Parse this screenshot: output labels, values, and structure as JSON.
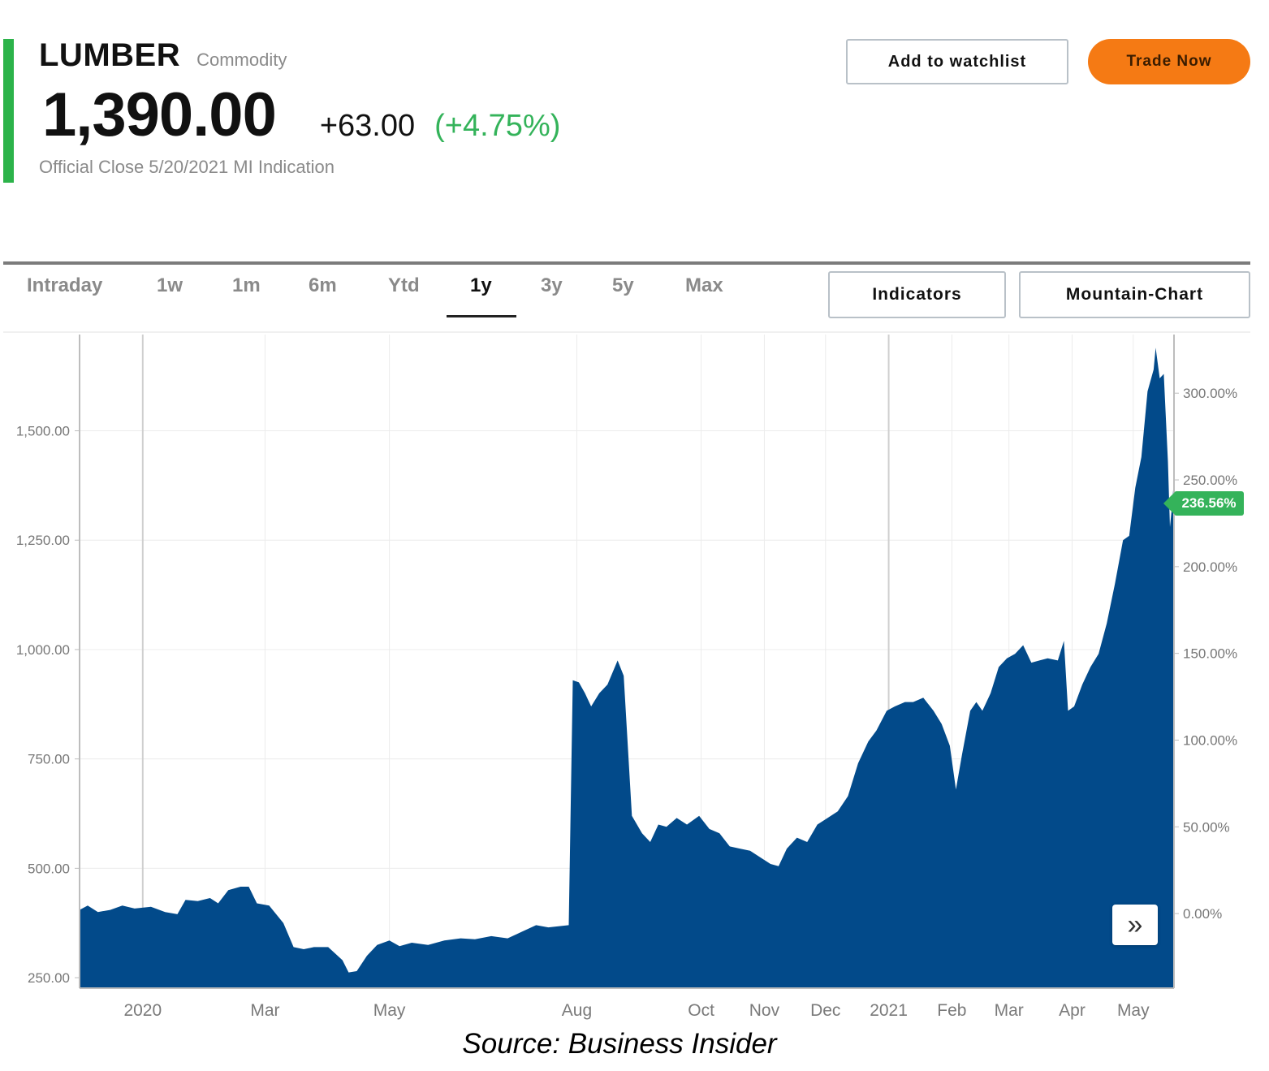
{
  "header": {
    "symbol": "LUMBER",
    "asset_type": "Commodity",
    "price": "1,390.00",
    "change": "+63.00",
    "change_pct": "(+4.75%)",
    "close_note": "Official Close 5/20/2021 MI Indication"
  },
  "actions": {
    "watchlist_label": "Add to watchlist",
    "trade_label": "Trade Now"
  },
  "toolbar": {
    "tabs": [
      "Intraday",
      "1w",
      "1m",
      "6m",
      "Ytd",
      "1y",
      "3y",
      "5y",
      "Max"
    ],
    "active_tab": "1y",
    "indicators_label": "Indicators",
    "chart_type_label": "Mountain-Chart"
  },
  "colors": {
    "accent": "#2cb34a",
    "positive": "#34b35a",
    "area_fill": "#024a8a",
    "trade_button": "#f57a14"
  },
  "icons": {
    "next": "double-chevron-right-icon"
  },
  "footer": {
    "source": "Source: Business Insider"
  },
  "chart_data": {
    "type": "area",
    "title": "",
    "xlabel": "",
    "ylabel": "",
    "ylim": [
      226,
      1720
    ],
    "xlim": [
      "2019-12-01",
      "2021-05-21"
    ],
    "y_ticks_left": [
      "1,500.00",
      "1,250.00",
      "1,000.00",
      "750.00",
      "500.00",
      "250.00"
    ],
    "y_tick_values_left": [
      1500,
      1250,
      1000,
      750,
      500,
      250
    ],
    "y_ticks_right": [
      "300.00%",
      "250.00%",
      "200.00%",
      "150.00%",
      "100.00%",
      "50.00%",
      "0.00%"
    ],
    "y_tick_values_right": [
      300,
      250,
      200,
      150,
      100,
      50,
      0
    ],
    "x_ticks": [
      "2020",
      "Mar",
      "May",
      "Aug",
      "Oct",
      "Nov",
      "Dec",
      "2021",
      "Feb",
      "Mar",
      "Apr",
      "May"
    ],
    "x_tick_dates": [
      "2020-01-01",
      "2020-03-01",
      "2020-05-01",
      "2020-08-01",
      "2020-10-01",
      "2020-11-01",
      "2020-12-01",
      "2021-01-01",
      "2021-02-01",
      "2021-03-01",
      "2021-04-01",
      "2021-05-01"
    ],
    "current_value_label": "236.56%",
    "current_value_pct": 236.56,
    "grid": true,
    "series": [
      {
        "values": [
          {
            "x": "2019-12-01",
            "y": 405
          },
          {
            "x": "2019-12-05",
            "y": 415
          },
          {
            "x": "2019-12-10",
            "y": 400
          },
          {
            "x": "2019-12-16",
            "y": 405
          },
          {
            "x": "2019-12-22",
            "y": 415
          },
          {
            "x": "2019-12-28",
            "y": 408
          },
          {
            "x": "2020-01-05",
            "y": 412
          },
          {
            "x": "2020-01-12",
            "y": 400
          },
          {
            "x": "2020-01-18",
            "y": 395
          },
          {
            "x": "2020-01-22",
            "y": 428
          },
          {
            "x": "2020-01-28",
            "y": 425
          },
          {
            "x": "2020-02-03",
            "y": 432
          },
          {
            "x": "2020-02-07",
            "y": 420
          },
          {
            "x": "2020-02-12",
            "y": 450
          },
          {
            "x": "2020-02-18",
            "y": 458
          },
          {
            "x": "2020-02-22",
            "y": 458
          },
          {
            "x": "2020-02-26",
            "y": 420
          },
          {
            "x": "2020-03-03",
            "y": 415
          },
          {
            "x": "2020-03-10",
            "y": 375
          },
          {
            "x": "2020-03-15",
            "y": 320
          },
          {
            "x": "2020-03-20",
            "y": 315
          },
          {
            "x": "2020-03-25",
            "y": 320
          },
          {
            "x": "2020-04-01",
            "y": 320
          },
          {
            "x": "2020-04-08",
            "y": 290
          },
          {
            "x": "2020-04-11",
            "y": 262
          },
          {
            "x": "2020-04-15",
            "y": 265
          },
          {
            "x": "2020-04-20",
            "y": 300
          },
          {
            "x": "2020-04-25",
            "y": 325
          },
          {
            "x": "2020-05-01",
            "y": 335
          },
          {
            "x": "2020-05-06",
            "y": 322
          },
          {
            "x": "2020-05-12",
            "y": 330
          },
          {
            "x": "2020-05-20",
            "y": 325
          },
          {
            "x": "2020-05-28",
            "y": 335
          },
          {
            "x": "2020-06-05",
            "y": 340
          },
          {
            "x": "2020-06-12",
            "y": 338
          },
          {
            "x": "2020-06-20",
            "y": 345
          },
          {
            "x": "2020-06-28",
            "y": 340
          },
          {
            "x": "2020-07-05",
            "y": 355
          },
          {
            "x": "2020-07-12",
            "y": 370
          },
          {
            "x": "2020-07-18",
            "y": 365
          },
          {
            "x": "2020-07-28",
            "y": 370
          },
          {
            "x": "2020-07-30",
            "y": 930
          },
          {
            "x": "2020-08-02",
            "y": 925
          },
          {
            "x": "2020-08-05",
            "y": 900
          },
          {
            "x": "2020-08-08",
            "y": 870
          },
          {
            "x": "2020-08-12",
            "y": 900
          },
          {
            "x": "2020-08-16",
            "y": 920
          },
          {
            "x": "2020-08-21",
            "y": 975
          },
          {
            "x": "2020-08-24",
            "y": 940
          },
          {
            "x": "2020-08-28",
            "y": 620
          },
          {
            "x": "2020-09-02",
            "y": 580
          },
          {
            "x": "2020-09-06",
            "y": 560
          },
          {
            "x": "2020-09-10",
            "y": 600
          },
          {
            "x": "2020-09-14",
            "y": 595
          },
          {
            "x": "2020-09-19",
            "y": 615
          },
          {
            "x": "2020-09-24",
            "y": 600
          },
          {
            "x": "2020-09-30",
            "y": 620
          },
          {
            "x": "2020-10-05",
            "y": 590
          },
          {
            "x": "2020-10-10",
            "y": 580
          },
          {
            "x": "2020-10-15",
            "y": 550
          },
          {
            "x": "2020-10-20",
            "y": 545
          },
          {
            "x": "2020-10-25",
            "y": 540
          },
          {
            "x": "2020-10-30",
            "y": 525
          },
          {
            "x": "2020-11-04",
            "y": 510
          },
          {
            "x": "2020-11-08",
            "y": 505
          },
          {
            "x": "2020-11-12",
            "y": 545
          },
          {
            "x": "2020-11-17",
            "y": 570
          },
          {
            "x": "2020-11-22",
            "y": 560
          },
          {
            "x": "2020-11-27",
            "y": 600
          },
          {
            "x": "2020-12-02",
            "y": 615
          },
          {
            "x": "2020-12-07",
            "y": 630
          },
          {
            "x": "2020-12-12",
            "y": 665
          },
          {
            "x": "2020-12-17",
            "y": 740
          },
          {
            "x": "2020-12-22",
            "y": 790
          },
          {
            "x": "2020-12-26",
            "y": 815
          },
          {
            "x": "2020-12-31",
            "y": 860
          },
          {
            "x": "2021-01-04",
            "y": 870
          },
          {
            "x": "2021-01-09",
            "y": 880
          },
          {
            "x": "2021-01-13",
            "y": 880
          },
          {
            "x": "2021-01-18",
            "y": 890
          },
          {
            "x": "2021-01-23",
            "y": 860
          },
          {
            "x": "2021-01-27",
            "y": 830
          },
          {
            "x": "2021-01-31",
            "y": 780
          },
          {
            "x": "2021-02-03",
            "y": 680
          },
          {
            "x": "2021-02-06",
            "y": 760
          },
          {
            "x": "2021-02-10",
            "y": 860
          },
          {
            "x": "2021-02-13",
            "y": 880
          },
          {
            "x": "2021-02-16",
            "y": 860
          },
          {
            "x": "2021-02-20",
            "y": 900
          },
          {
            "x": "2021-02-24",
            "y": 960
          },
          {
            "x": "2021-02-28",
            "y": 980
          },
          {
            "x": "2021-03-04",
            "y": 990
          },
          {
            "x": "2021-03-08",
            "y": 1010
          },
          {
            "x": "2021-03-12",
            "y": 970
          },
          {
            "x": "2021-03-16",
            "y": 975
          },
          {
            "x": "2021-03-20",
            "y": 980
          },
          {
            "x": "2021-03-25",
            "y": 975
          },
          {
            "x": "2021-03-28",
            "y": 1020
          },
          {
            "x": "2021-03-30",
            "y": 860
          },
          {
            "x": "2021-04-02",
            "y": 870
          },
          {
            "x": "2021-04-06",
            "y": 920
          },
          {
            "x": "2021-04-10",
            "y": 960
          },
          {
            "x": "2021-04-14",
            "y": 990
          },
          {
            "x": "2021-04-18",
            "y": 1060
          },
          {
            "x": "2021-04-22",
            "y": 1150
          },
          {
            "x": "2021-04-26",
            "y": 1250
          },
          {
            "x": "2021-04-29",
            "y": 1260
          },
          {
            "x": "2021-05-02",
            "y": 1370
          },
          {
            "x": "2021-05-05",
            "y": 1440
          },
          {
            "x": "2021-05-08",
            "y": 1590
          },
          {
            "x": "2021-05-11",
            "y": 1640
          },
          {
            "x": "2021-05-12",
            "y": 1690
          },
          {
            "x": "2021-05-14",
            "y": 1620
          },
          {
            "x": "2021-05-16",
            "y": 1630
          },
          {
            "x": "2021-05-18",
            "y": 1430
          },
          {
            "x": "2021-05-19",
            "y": 1280
          },
          {
            "x": "2021-05-20",
            "y": 1327
          },
          {
            "x": "2021-05-21",
            "y": 1390
          }
        ]
      }
    ]
  }
}
